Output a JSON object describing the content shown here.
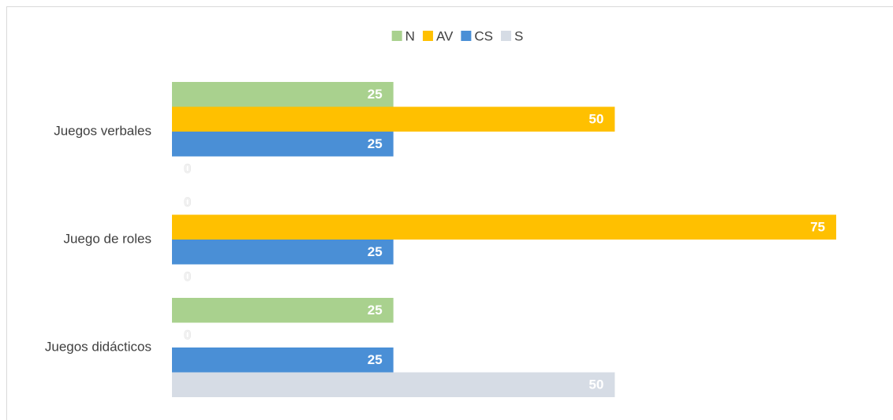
{
  "chart_data": {
    "type": "hbar",
    "categories": [
      "Juegos verbales",
      "Juego de roles",
      "Juegos didácticos"
    ],
    "series": [
      {
        "name": "N",
        "color": "#a9d18e",
        "values": [
          25,
          0,
          25
        ]
      },
      {
        "name": "AV",
        "color": "#ffc000",
        "values": [
          50,
          75,
          0
        ]
      },
      {
        "name": "CS",
        "color": "#4a8fd6",
        "values": [
          25,
          25,
          25
        ]
      },
      {
        "name": "S",
        "color": "#d6dce5",
        "values": [
          0,
          0,
          50
        ]
      }
    ],
    "legend": "top"
  }
}
